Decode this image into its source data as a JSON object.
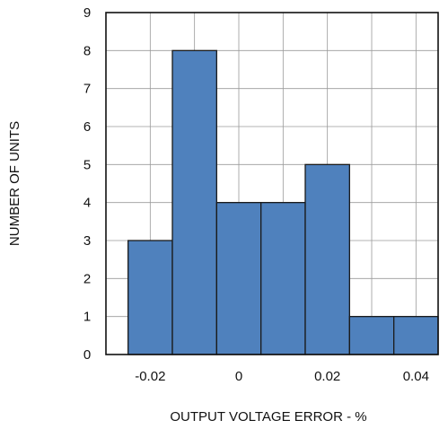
{
  "chart_data": {
    "type": "bar",
    "title": "",
    "xlabel": "OUTPUT VOLTAGE ERROR - %",
    "ylabel": "NUMBER OF UNITS",
    "xlim": [
      -0.03,
      0.045
    ],
    "ylim": [
      0,
      9
    ],
    "grid": true,
    "bar_width": 0.01,
    "bar_color": "#4f81bd",
    "bar_edge_color": "#1a1a1a",
    "bars": [
      {
        "x": -0.02,
        "value": 3
      },
      {
        "x": -0.01,
        "value": 8
      },
      {
        "x": 0.0,
        "value": 4
      },
      {
        "x": 0.01,
        "value": 4
      },
      {
        "x": 0.02,
        "value": 5
      },
      {
        "x": 0.03,
        "value": 1
      },
      {
        "x": 0.04,
        "value": 1
      }
    ],
    "x_ticks": [
      {
        "value": -0.02,
        "label": "-0.02"
      },
      {
        "value": 0.0,
        "label": "0"
      },
      {
        "value": 0.02,
        "label": "0.02"
      },
      {
        "value": 0.04,
        "label": "0.04"
      }
    ],
    "x_gridlines": [
      -0.02,
      -0.01,
      0.0,
      0.01,
      0.02,
      0.03,
      0.04
    ],
    "y_ticks": [
      0,
      1,
      2,
      3,
      4,
      5,
      6,
      7,
      8,
      9
    ]
  }
}
